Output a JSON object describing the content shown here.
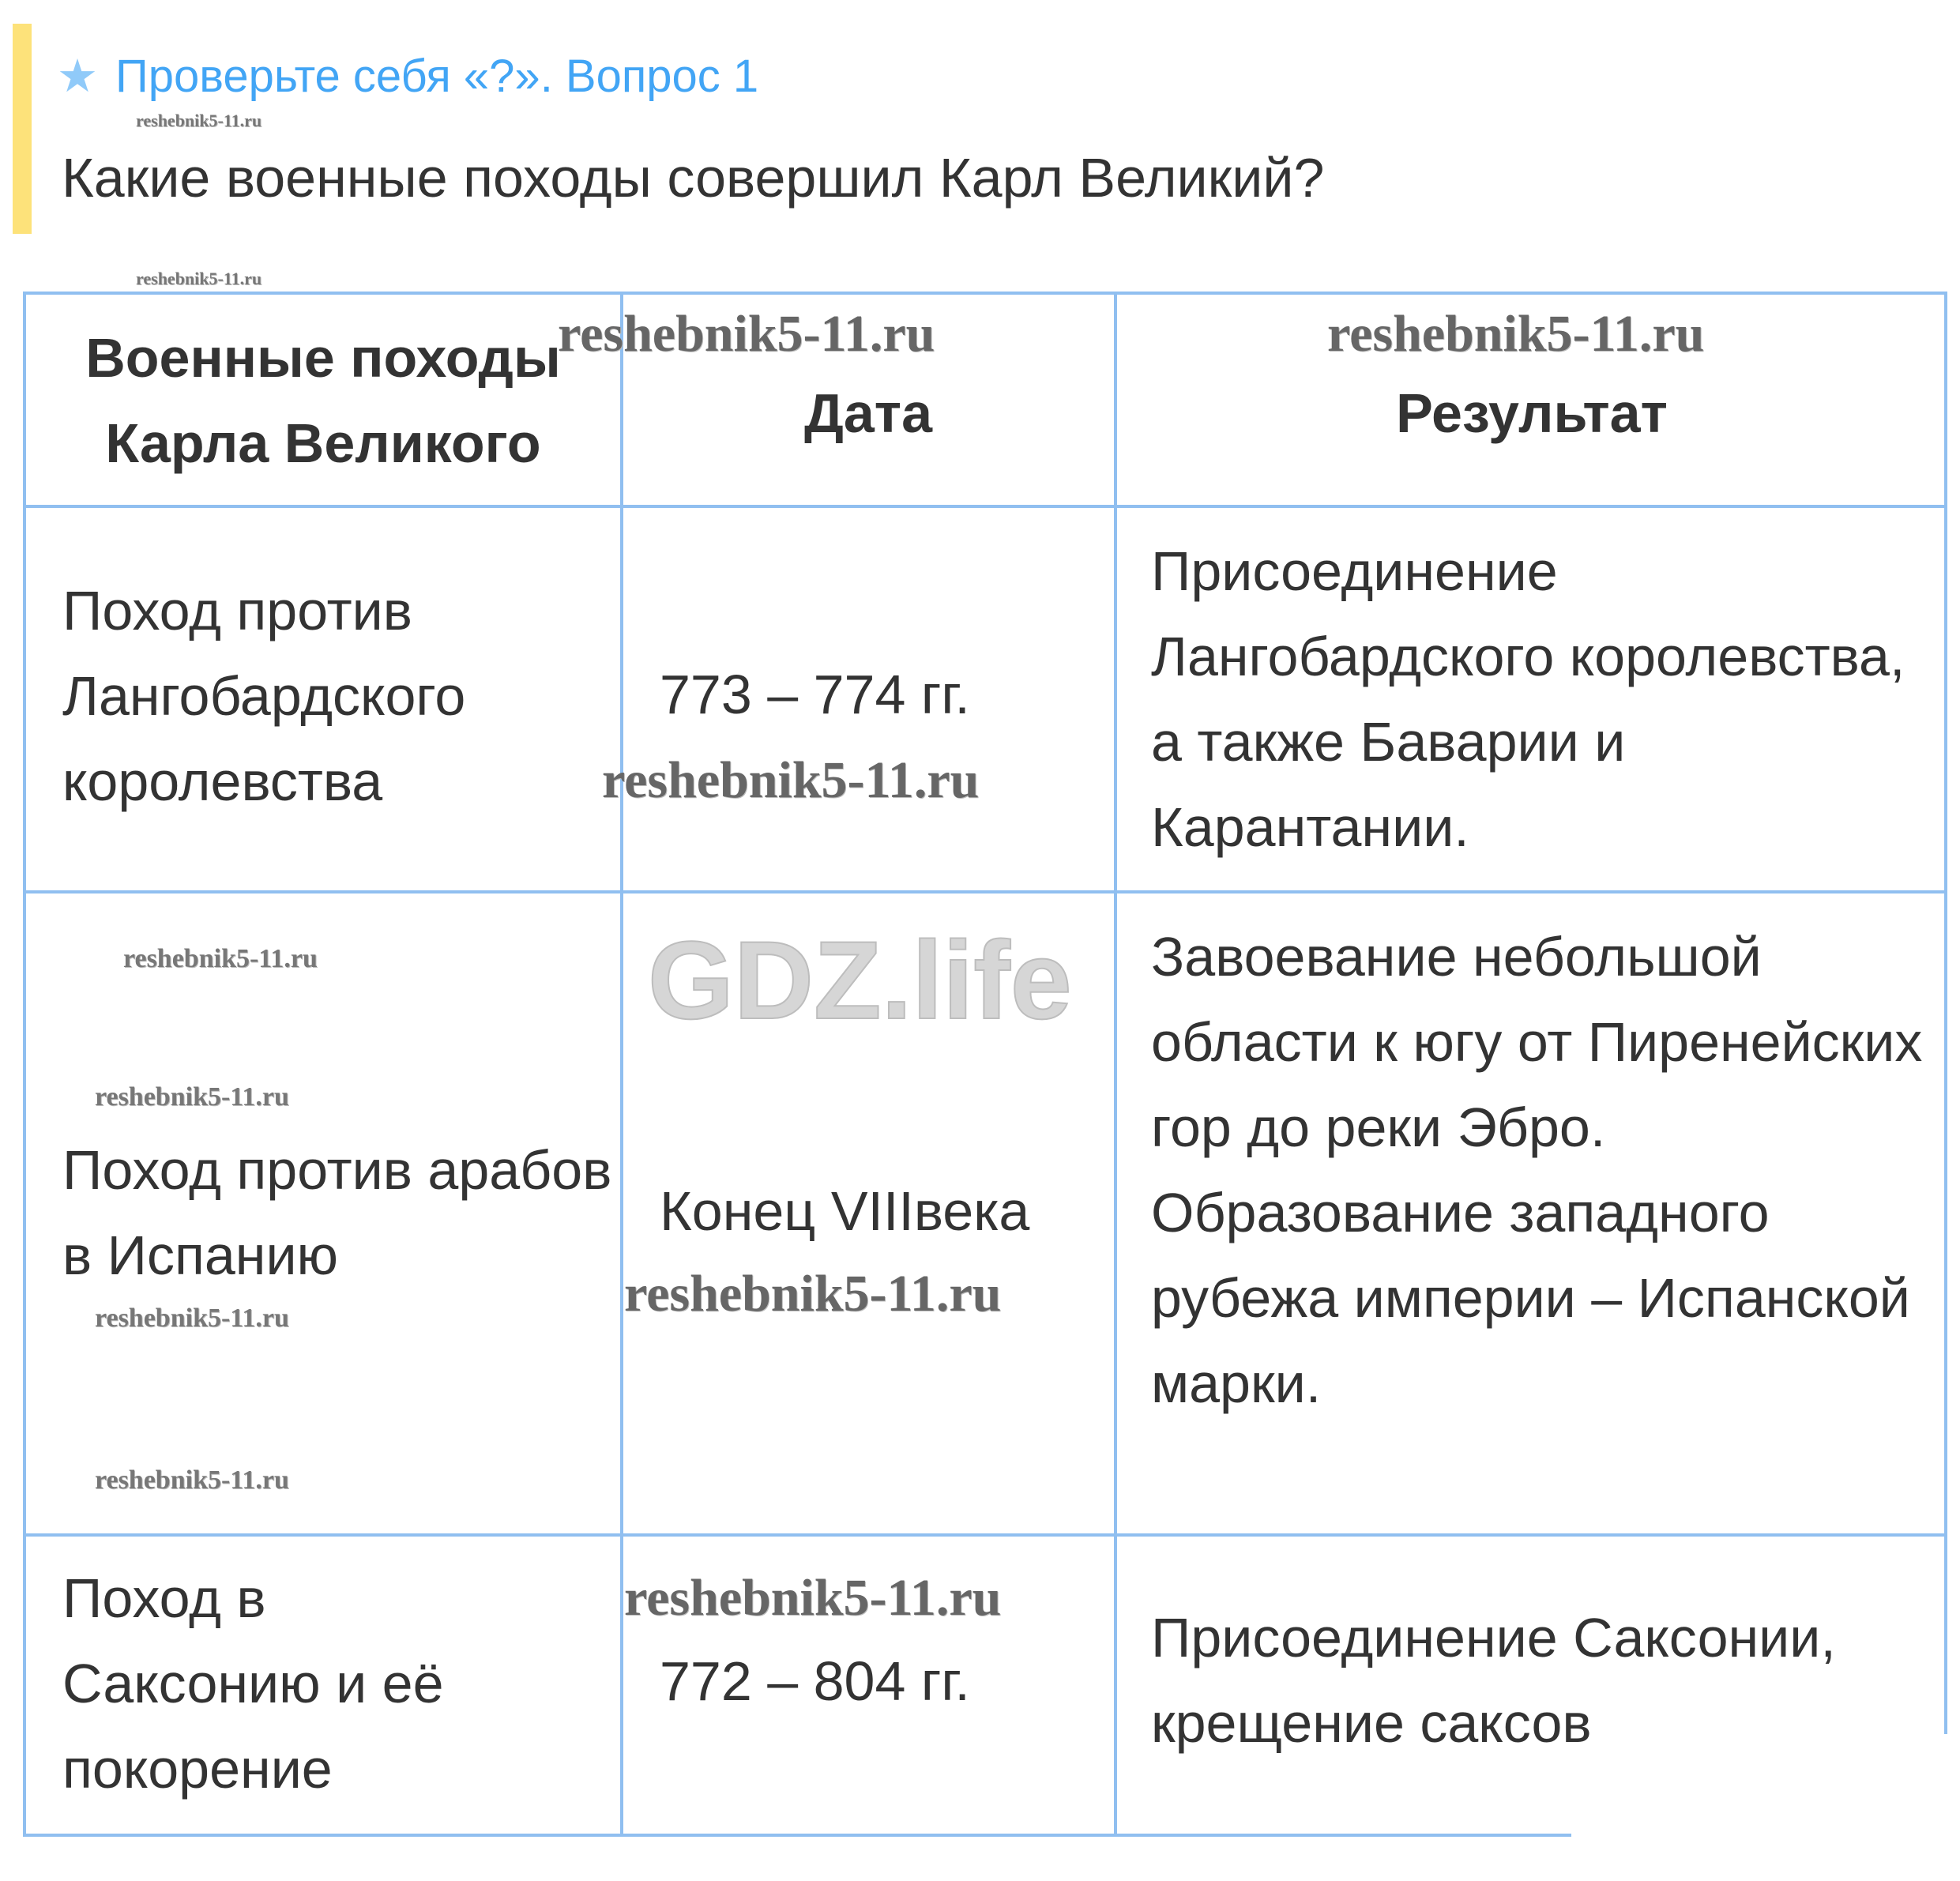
{
  "header": {
    "star_icon": "star-icon",
    "title": "Проверьте себя «?». Вопрос 1",
    "question": "Какие военные походы совершил Карл Великий?"
  },
  "colors": {
    "accent": "#42a5f5",
    "bar": "#fde27a",
    "border": "#90bff0"
  },
  "table": {
    "headers": [
      "Военные походы Карла Великого",
      "Дата",
      "Результат"
    ],
    "rows": [
      {
        "campaign": "Поход против Лангобардского королевства",
        "date": "773 – 774 гг.",
        "result": "Присоединение Лангобардского королевства, а также Баварии и Карантании."
      },
      {
        "campaign": "Поход против арабов в Испанию",
        "date": "Конец VIIIвека",
        "result": "Завоевание небольшой области к югу от Пиренейских гор до реки Эбро. Образование западного рубежа империи – Испанской марки."
      },
      {
        "campaign": "Поход в Саксонию и её покорение",
        "date": "772 – 804 гг.",
        "result": "Присоединение Саксонии, крещение саксов"
      }
    ]
  },
  "watermark": {
    "text": "reshebnik5-11.ru",
    "logo": "GDZ.life"
  }
}
